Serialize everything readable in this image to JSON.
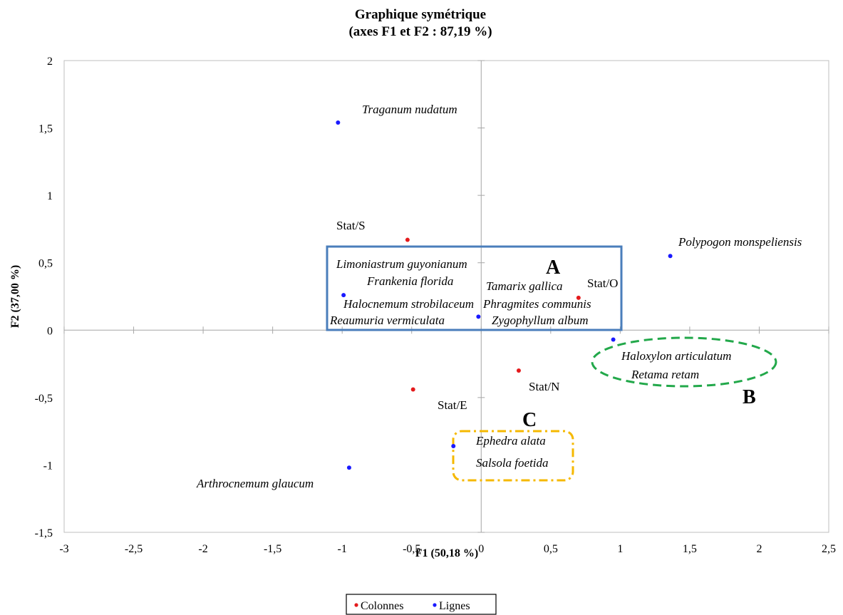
{
  "chart_data": {
    "type": "scatter",
    "title": "Graphique symétrique",
    "subtitle": "(axes F1 et F2 : 87,19 %)",
    "xlabel": "F1 (50,18 %)",
    "ylabel": "F2 (37,00 %)",
    "xlim": [
      -3,
      2.5
    ],
    "ylim": [
      -1.5,
      2
    ],
    "xticks": [
      -3,
      -2.5,
      -2,
      -1.5,
      -1,
      -0.5,
      0,
      0.5,
      1,
      1.5,
      2,
      2.5
    ],
    "yticks": [
      -1.5,
      -1,
      -0.5,
      0,
      0.5,
      1,
      1.5,
      2
    ],
    "xtick_labels": [
      "-3",
      "-2,5",
      "-2",
      "-1,5",
      "-1",
      "-0,5",
      "0",
      "0,5",
      "1",
      "1,5",
      "2",
      "2,5"
    ],
    "ytick_labels": [
      "-1,5",
      "-1",
      "-0,5",
      "0",
      "0,5",
      "1",
      "1,5",
      "2"
    ],
    "grid": false,
    "legend_position": "bottom",
    "series": [
      {
        "name": "Colonnes",
        "color": "#e41a1c",
        "points": [
          {
            "label": "Stat/S",
            "x": -0.53,
            "y": 0.67
          },
          {
            "label": "Stat/O",
            "x": 0.7,
            "y": 0.24
          },
          {
            "label": "Stat/N",
            "x": 0.27,
            "y": -0.3
          },
          {
            "label": "Stat/E",
            "x": -0.49,
            "y": -0.44
          }
        ]
      },
      {
        "name": "Lignes",
        "color": "#1a1aff",
        "points": [
          {
            "label": "Traganum nudatum",
            "x": -1.03,
            "y": 1.54
          },
          {
            "label": "Polypogon monspeliensis",
            "x": 1.36,
            "y": 0.55
          },
          {
            "label": "Frankenia florida",
            "x": -0.99,
            "y": 0.26
          },
          {
            "label": "Zygophyllum album",
            "x": -0.02,
            "y": 0.1
          },
          {
            "label": "Haloxylon articulatum",
            "x": 0.95,
            "y": -0.07
          },
          {
            "label": "Ephedra alata",
            "x": -0.2,
            "y": -0.86
          },
          {
            "label": "Arthrocnemum glaucum",
            "x": -0.95,
            "y": -1.02
          }
        ]
      }
    ],
    "extra_labels": [
      "Limoniastrum guyonianum",
      "Halocnemum strobilaceum",
      "Reaumuria vermiculata",
      "Tamarix gallica",
      "Phragmites communis",
      "Retama retam",
      "Salsola foetida"
    ],
    "groups": [
      {
        "label": "A",
        "shape": "rectangle",
        "color": "#4a7ebb",
        "style": "solid"
      },
      {
        "label": "B",
        "shape": "ellipse",
        "color": "#22a84a",
        "style": "dashed"
      },
      {
        "label": "C",
        "shape": "rounded-rectangle",
        "color": "#f5b800",
        "style": "dash-dot"
      }
    ]
  }
}
